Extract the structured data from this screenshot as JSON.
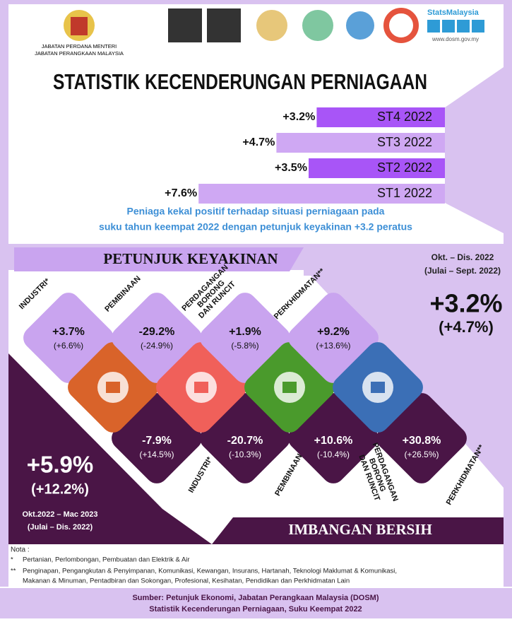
{
  "header": {
    "agency_lines": [
      "JABATAN PERDANA MENTERI",
      "JABATAN PERANGKAAN MALAYSIA"
    ],
    "brand": "StatsMalaysia",
    "website": "www.dosm.gov.my"
  },
  "title": "STATISTIK KECENDERUNGAN PERNIAGAAN",
  "trend": {
    "items": [
      {
        "label": "ST4 2022",
        "value": 3.2,
        "value_label": "+3.2%"
      },
      {
        "label": "ST3 2022",
        "value": 4.7,
        "value_label": "+4.7%"
      },
      {
        "label": "ST2 2022",
        "value": 3.5,
        "value_label": "+3.5%"
      },
      {
        "label": "ST1 2022",
        "value": 7.6,
        "value_label": "+7.6%"
      }
    ]
  },
  "summary": [
    "Peniaga kekal positif terhadap situasi perniagaan pada",
    "suku tahun keempat 2022 dengan petunjuk keyakinan +3.2 peratus"
  ],
  "confidence": {
    "heading": "PETUNJUK KEYAKINAN",
    "period": "Okt. – Dis. 2022",
    "previous_period": "(Julai – Sept. 2022)",
    "overall": "+3.2%",
    "overall_previous": "(+4.7%)",
    "sectors": [
      {
        "name_lines": [
          "INDUSTRI*"
        ],
        "value": "+3.7%",
        "previous": "(+6.6%)"
      },
      {
        "name_lines": [
          "PEMBINAAN"
        ],
        "value": "-29.2%",
        "previous": "(-24.9%)"
      },
      {
        "name_lines": [
          "PERDAGANGAN",
          "BORONG",
          "DAN RUNCIT"
        ],
        "value": "+1.9%",
        "previous": "(-5.8%)"
      },
      {
        "name_lines": [
          "PERKHIDMATAN**"
        ],
        "value": "+9.2%",
        "previous": "(+13.6%)"
      }
    ]
  },
  "net_balance": {
    "heading": "IMBANGAN BERSIH",
    "period": "Okt.2022 – Mac 2023",
    "previous_period": "(Julai – Dis. 2022)",
    "overall": "+5.9%",
    "overall_previous": "(+12.2%)",
    "sectors": [
      {
        "name_lines": [
          "INDUSTRI*"
        ],
        "value": "-7.9%",
        "previous": "(+14.5%)"
      },
      {
        "name_lines": [
          "PEMBINAAN"
        ],
        "value": "-20.7%",
        "previous": "(-10.3%)"
      },
      {
        "name_lines": [
          "PERDAGANGAN",
          "BORONG",
          "DAN RUNCIT"
        ],
        "value": "+10.6%",
        "previous": "(-10.4%)"
      },
      {
        "name_lines": [
          "PERKHIDMATAN**"
        ],
        "value": "+30.8%",
        "previous": "(+26.5%)"
      }
    ]
  },
  "notes": {
    "title": "Nota :",
    "items": [
      {
        "marker": "*",
        "lines": [
          "Pertanian, Perlombongan, Pembuatan dan Elektrik & Air"
        ]
      },
      {
        "marker": "**",
        "lines": [
          "Penginapan, Pengangkutan & Penyimpanan, Komunikasi, Kewangan, Insurans, Hartanah, Teknologi Maklumat & Komunikasi,",
          "Makanan & Minuman, Pentadbiran dan Sokongan, Profesional, Kesihatan, Pendidikan dan Perkhidmatan Lain"
        ]
      }
    ]
  },
  "footer": [
    "Sumber: Petunjuk Ekonomi, Jabatan Perangkaan Malaysia (DOSM)",
    "Statistik Kecenderungan Perniagaan, Suku Keempat 2022"
  ]
}
